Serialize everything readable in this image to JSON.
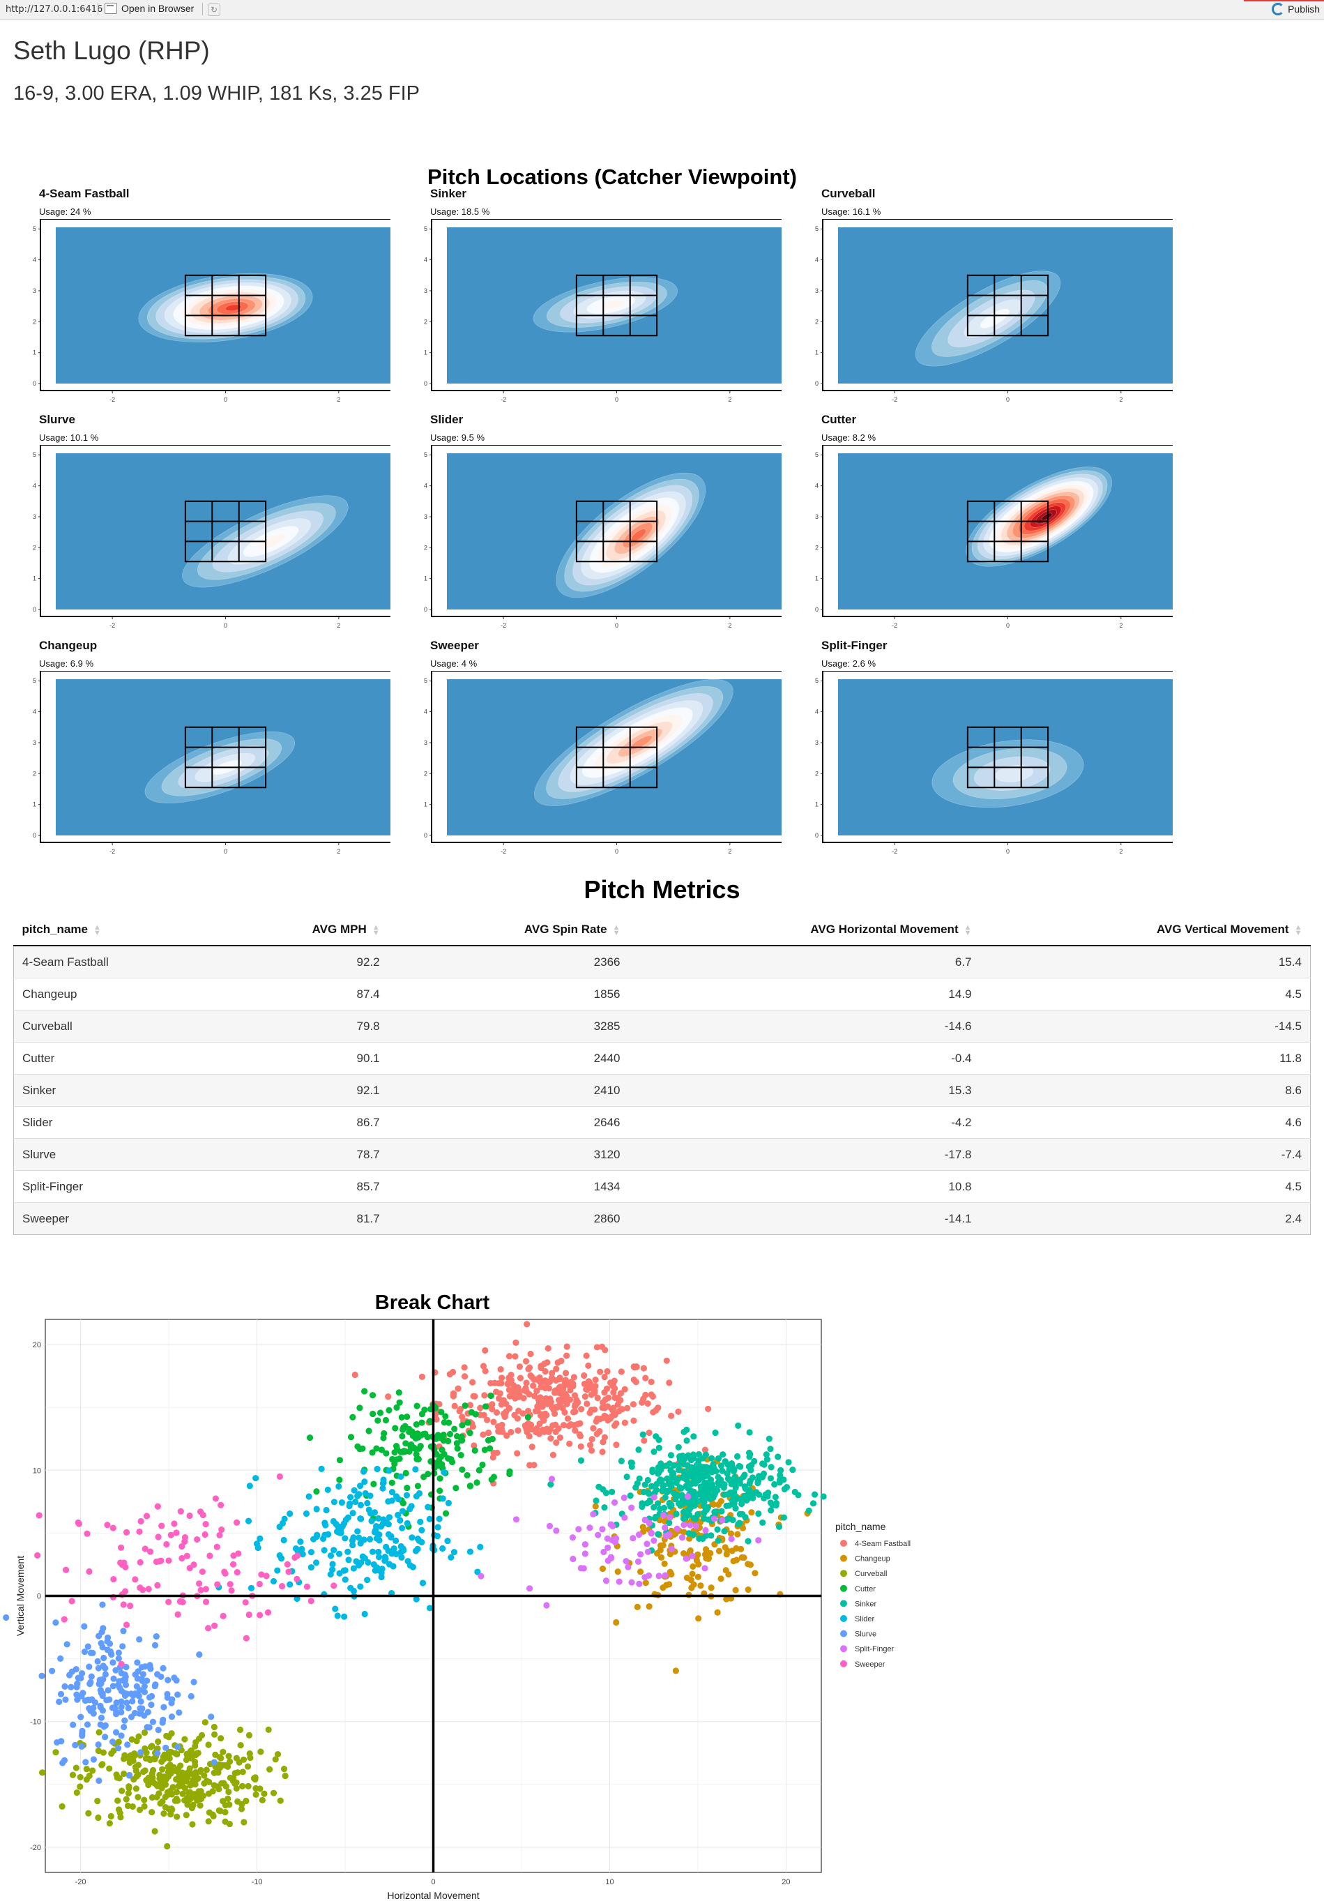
{
  "topbar": {
    "url": "http://127.0.0.1:6416",
    "open_label": "Open in Browser",
    "publish_label": "Publish"
  },
  "player": {
    "name": "Seth Lugo (RHP)",
    "stats": "16-9, 3.00 ERA, 1.09 WHIP, 181 Ks, 3.25 FIP"
  },
  "locations": {
    "title": "Pitch Locations (Catcher Viewpoint)",
    "x_ticks": [
      "-2",
      "0",
      "2"
    ],
    "y_ticks": [
      "0",
      "1",
      "2",
      "3",
      "4",
      "5"
    ],
    "colors": {
      "background": "#4292c6",
      "hot": "#a50f15"
    },
    "panels": [
      {
        "name": "4-Seam Fastball",
        "usage": "Usage: 24 %"
      },
      {
        "name": "Sinker",
        "usage": "Usage: 18.5 %"
      },
      {
        "name": "Curveball",
        "usage": "Usage: 16.1 %"
      },
      {
        "name": "Slurve",
        "usage": "Usage: 10.1 %"
      },
      {
        "name": "Slider",
        "usage": "Usage: 9.5 %"
      },
      {
        "name": "Cutter",
        "usage": "Usage: 8.2 %"
      },
      {
        "name": "Changeup",
        "usage": "Usage: 6.9 %"
      },
      {
        "name": "Sweeper",
        "usage": "Usage: 4 %"
      },
      {
        "name": "Split-Finger",
        "usage": "Usage: 2.6 %"
      }
    ]
  },
  "metrics": {
    "title": "Pitch Metrics",
    "headers": [
      "pitch_name",
      "AVG MPH",
      "AVG Spin Rate",
      "AVG Horizontal Movement",
      "AVG Vertical Movement"
    ],
    "rows": [
      [
        "4-Seam Fastball",
        "92.2",
        "2366",
        "6.7",
        "15.4"
      ],
      [
        "Changeup",
        "87.4",
        "1856",
        "14.9",
        "4.5"
      ],
      [
        "Curveball",
        "79.8",
        "3285",
        "-14.6",
        "-14.5"
      ],
      [
        "Cutter",
        "90.1",
        "2440",
        "-0.4",
        "11.8"
      ],
      [
        "Sinker",
        "92.1",
        "2410",
        "15.3",
        "8.6"
      ],
      [
        "Slider",
        "86.7",
        "2646",
        "-4.2",
        "4.6"
      ],
      [
        "Slurve",
        "78.7",
        "3120",
        "-17.8",
        "-7.4"
      ],
      [
        "Split-Finger",
        "85.7",
        "1434",
        "10.8",
        "4.5"
      ],
      [
        "Sweeper",
        "81.7",
        "2860",
        "-14.1",
        "2.4"
      ]
    ]
  },
  "chart_data": {
    "type": "scatter",
    "title": "Break Chart",
    "xlabel": "Horizontal Movement",
    "ylabel": "Vertical Movement",
    "xlim": [
      -22,
      22
    ],
    "ylim": [
      -22,
      22
    ],
    "x_ticks": [
      "-20",
      "-10",
      "0",
      "10",
      "20"
    ],
    "y_ticks": [
      "-20",
      "-10",
      "0",
      "10",
      "20"
    ],
    "grid": true,
    "legend_title": "pitch_name",
    "legend_position": "right",
    "series": [
      {
        "name": "4-Seam Fastball",
        "color": "#F8766D",
        "center": [
          6.7,
          15.4
        ],
        "spread": [
          3.2,
          1.9
        ],
        "count": 380
      },
      {
        "name": "Changeup",
        "color": "#D39200",
        "center": [
          14.9,
          4.5
        ],
        "spread": [
          2.0,
          2.6
        ],
        "count": 190
      },
      {
        "name": "Curveball",
        "color": "#93AA00",
        "center": [
          -14.6,
          -14.5
        ],
        "spread": [
          2.6,
          1.9
        ],
        "count": 330
      },
      {
        "name": "Cutter",
        "color": "#00BA38",
        "center": [
          -0.4,
          11.8
        ],
        "spread": [
          2.2,
          2.0
        ],
        "count": 170
      },
      {
        "name": "Sinker",
        "color": "#00C19F",
        "center": [
          15.3,
          8.6
        ],
        "spread": [
          2.3,
          1.7
        ],
        "count": 400
      },
      {
        "name": "Slider",
        "color": "#00B9E3",
        "center": [
          -4.2,
          4.6
        ],
        "spread": [
          2.4,
          2.6
        ],
        "count": 220
      },
      {
        "name": "Slurve",
        "color": "#619CFF",
        "center": [
          -17.8,
          -7.4
        ],
        "spread": [
          1.9,
          2.7
        ],
        "count": 210
      },
      {
        "name": "Split-Finger",
        "color": "#DB72FB",
        "center": [
          10.8,
          4.5
        ],
        "spread": [
          2.9,
          2.2
        ],
        "count": 75
      },
      {
        "name": "Sweeper",
        "color": "#FF61C3",
        "center": [
          -14.1,
          2.4
        ],
        "spread": [
          3.4,
          2.6
        ],
        "count": 110
      }
    ]
  }
}
